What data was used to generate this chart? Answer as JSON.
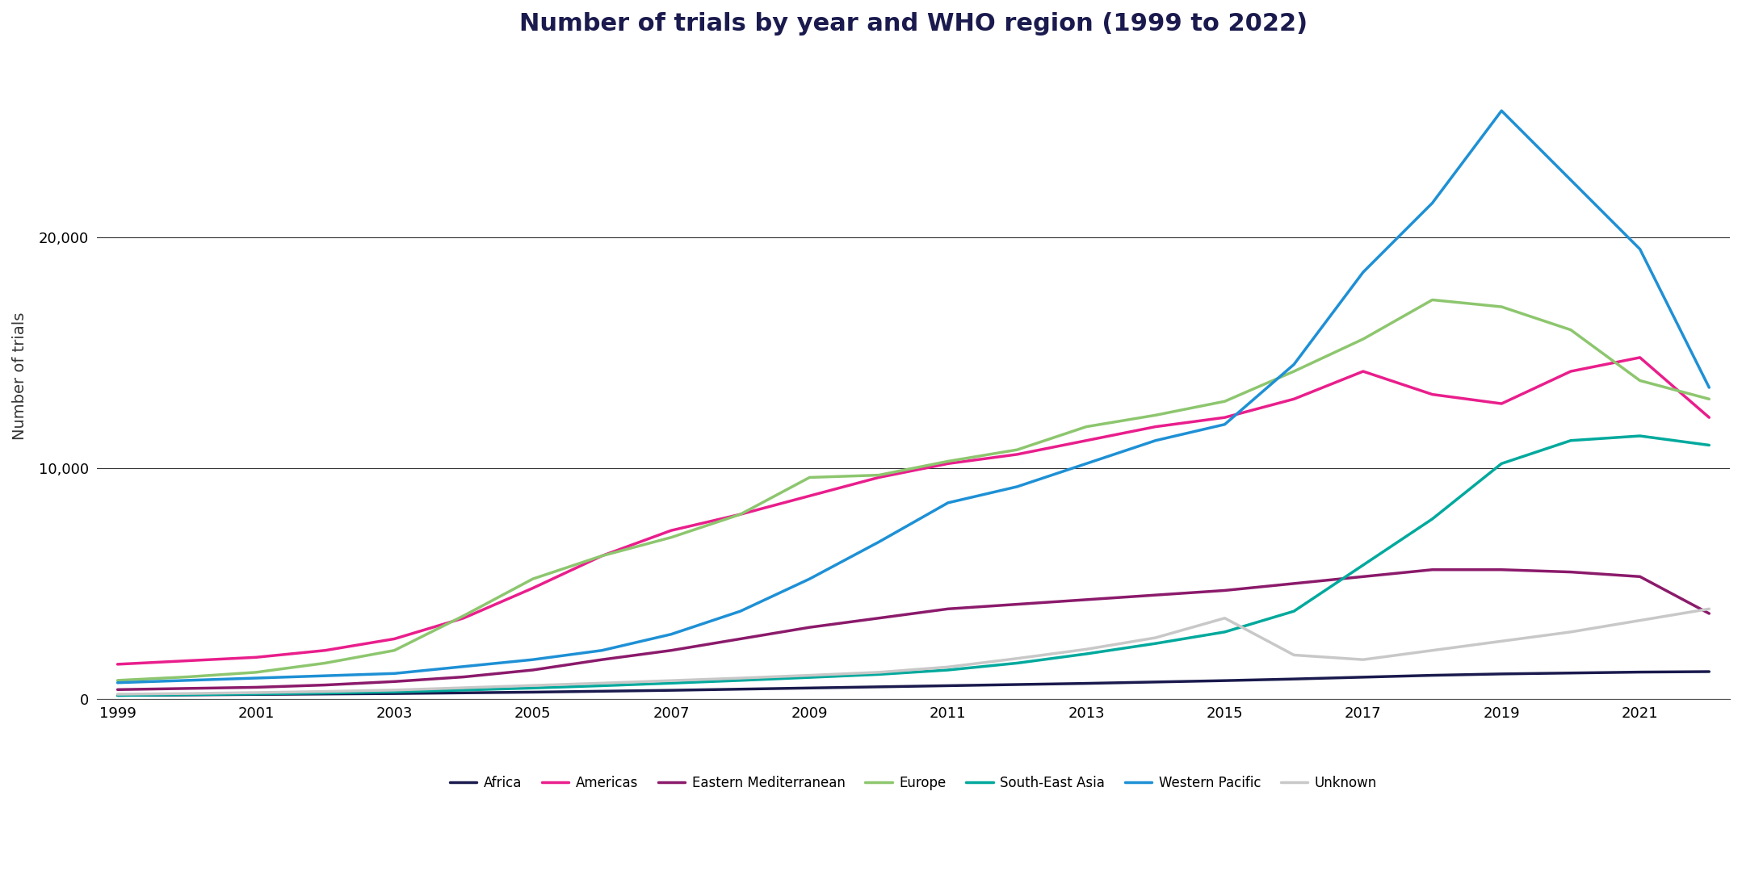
{
  "title": "Number of trials by year and WHO region (1999 to 2022)",
  "xlabel": "",
  "ylabel": "Number of trials",
  "years": [
    1999,
    2000,
    2001,
    2002,
    2003,
    2004,
    2005,
    2006,
    2007,
    2008,
    2009,
    2010,
    2011,
    2012,
    2013,
    2014,
    2015,
    2016,
    2017,
    2018,
    2019,
    2020,
    2021,
    2022
  ],
  "series": {
    "Africa": [
      150,
      170,
      190,
      210,
      230,
      260,
      290,
      330,
      370,
      420,
      470,
      520,
      570,
      620,
      670,
      730,
      790,
      860,
      940,
      1020,
      1080,
      1120,
      1160,
      1180
    ],
    "Americas": [
      1500,
      1650,
      1800,
      2100,
      2600,
      3500,
      4800,
      6200,
      7300,
      8000,
      8800,
      9600,
      10200,
      10600,
      11200,
      11800,
      12200,
      13000,
      14200,
      13200,
      12800,
      14200,
      14800,
      12200
    ],
    "Eastern Mediterranean": [
      400,
      450,
      500,
      600,
      750,
      950,
      1250,
      1700,
      2100,
      2600,
      3100,
      3500,
      3900,
      4100,
      4300,
      4500,
      4700,
      5000,
      5300,
      5600,
      5600,
      5500,
      5300,
      3700
    ],
    "Europe": [
      800,
      950,
      1150,
      1550,
      2100,
      3600,
      5200,
      6200,
      7000,
      8000,
      9600,
      9700,
      10300,
      10800,
      11800,
      12300,
      12900,
      14200,
      15600,
      17300,
      17000,
      16000,
      13800,
      13000
    ],
    "South-East Asia": [
      150,
      180,
      210,
      250,
      300,
      380,
      470,
      570,
      680,
      800,
      930,
      1060,
      1250,
      1550,
      1950,
      2400,
      2900,
      3800,
      5800,
      7800,
      10200,
      11200,
      11400,
      11000
    ],
    "Western Pacific": [
      700,
      800,
      900,
      1000,
      1100,
      1400,
      1700,
      2100,
      2800,
      3800,
      5200,
      6800,
      8500,
      9200,
      10200,
      11200,
      11900,
      14500,
      18500,
      21500,
      25500,
      22500,
      19500,
      13500
    ],
    "Unknown": [
      200,
      230,
      270,
      320,
      380,
      480,
      580,
      680,
      790,
      900,
      1020,
      1150,
      1380,
      1750,
      2150,
      2650,
      3500,
      1900,
      1700,
      2100,
      2500,
      2900,
      3400,
      3900
    ]
  },
  "colors": {
    "Africa": "#1a1a4e",
    "Americas": "#e91e8c",
    "Eastern Mediterranean": "#8b1a6b",
    "Europe": "#8dc66e",
    "South-East Asia": "#00a99d",
    "Western Pacific": "#1e90d5",
    "Unknown": "#c8c8c8"
  },
  "ylim": [
    0,
    28000
  ],
  "yticks": [
    0,
    10000,
    20000
  ],
  "background_color": "#ffffff",
  "title_fontsize": 22,
  "axis_fontsize": 13,
  "legend_fontsize": 12,
  "linewidth": 2.5
}
